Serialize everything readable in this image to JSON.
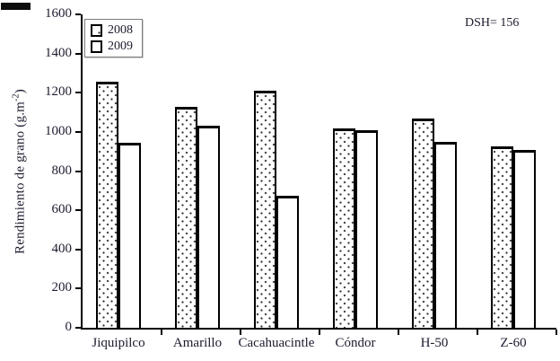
{
  "figure": {
    "background": "#ffffff"
  },
  "annotation": {
    "text": "DSH= 156"
  },
  "legend": {
    "entries": [
      {
        "label": "2008",
        "pattern": "dotted"
      },
      {
        "label": "2009",
        "pattern": "plain"
      }
    ]
  },
  "y_axis": {
    "label_prefix": "Rendimiento de grano (g.m",
    "label_sup": "-2",
    "label_suffix": ")",
    "ticks": [
      "0",
      "200",
      "400",
      "600",
      "800",
      "1000",
      "1200",
      "1400",
      "1600"
    ]
  },
  "x_axis": {
    "categories": [
      "Jiquipilco",
      "Amarillo",
      "Cacahuacintle",
      "Cóndor",
      "H-50",
      "Z-60"
    ]
  },
  "chart_data": {
    "type": "bar",
    "title": "",
    "xlabel": "",
    "ylabel": "Rendimiento de grano (g.m-2)",
    "categories": [
      "Jiquipilco",
      "Amarillo",
      "Cacahuacintle",
      "Cóndor",
      "H-50",
      "Z-60"
    ],
    "series": [
      {
        "name": "2008",
        "pattern": "dotted",
        "values": [
          1255,
          1130,
          1210,
          1020,
          1070,
          925
        ]
      },
      {
        "name": "2009",
        "pattern": "plain",
        "values": [
          945,
          1030,
          675,
          1010,
          950,
          910
        ]
      }
    ],
    "ylim": [
      0,
      1600
    ],
    "ytick_step": 200,
    "annotation": "DSH= 156",
    "legend_position": "top-left",
    "grid": false,
    "bar_fill": "#ffffff",
    "bar_border": "#000000"
  },
  "colors": {
    "text": "#1b1b2e",
    "axis": "#000000",
    "legend_border": "#7d7d7d",
    "dot": "#3c3c3c"
  }
}
